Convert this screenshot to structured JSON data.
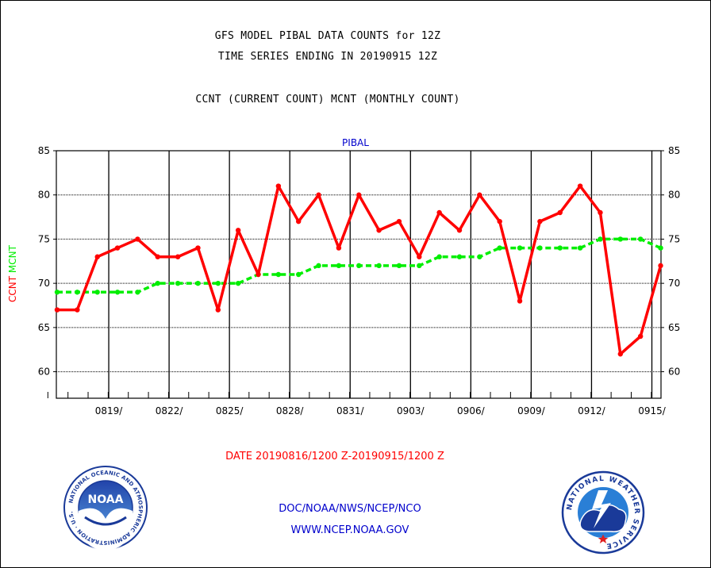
{
  "header": {
    "title": "GFS MODEL PIBAL DATA COUNTS for 12Z",
    "subtitle": "TIME SERIES ENDING IN 20190915 12Z",
    "legend_text": "CCNT (CURRENT COUNT) MCNT (MONTHLY COUNT)"
  },
  "footer": {
    "daterange": "DATE 20190816/1200 Z-20190915/1200 Z",
    "org": "DOC/NOAA/NWS/NCEP/NCO",
    "url": "WWW.NCEP.NOAA.GOV",
    "noaa_logo_text": "NOAA",
    "noaa_ring_text": "NATIONAL OCEANIC AND ATMOSPHERIC ADMINISTRATION · U.S. DEPARTMENT OF COMMERCE",
    "nws_ring_text": "NATIONAL WEATHER SERVICE"
  },
  "colors": {
    "ccnt": "#ff0000",
    "mcnt": "#00ee00",
    "axis": "#000000",
    "blue_text": "#0000cc",
    "red_text": "#ff0000"
  },
  "chart_data": {
    "type": "line",
    "title": "PIBAL",
    "ylabel_left": [
      "CCNT",
      "MCNT"
    ],
    "ylim": [
      57,
      85
    ],
    "yticks": [
      60,
      65,
      70,
      75,
      80,
      85
    ],
    "xlabels": [
      "0819/",
      "0822/",
      "0825/",
      "0828/",
      "0831/",
      "0903/",
      "0906/",
      "0909/",
      "0912/",
      "0915/"
    ],
    "grid": true,
    "x": [
      "0816",
      "0817",
      "0818",
      "0819",
      "0820",
      "0821",
      "0822",
      "0823",
      "0824",
      "0825",
      "0826",
      "0827",
      "0828",
      "0829",
      "0830",
      "0831",
      "0901",
      "0902",
      "0903",
      "0904",
      "0905",
      "0906",
      "0907",
      "0908",
      "0909",
      "0910",
      "0911",
      "0912",
      "0913",
      "0914",
      "0915"
    ],
    "series": [
      {
        "name": "CCNT",
        "values": [
          67,
          67,
          73,
          74,
          75,
          73,
          73,
          74,
          67,
          76,
          71,
          81,
          77,
          80,
          74,
          80,
          76,
          77,
          73,
          78,
          76,
          80,
          77,
          68,
          77,
          78,
          81,
          78,
          62,
          64,
          72
        ]
      },
      {
        "name": "MCNT",
        "values": [
          69,
          69,
          69,
          69,
          69,
          70,
          70,
          70,
          70,
          70,
          71,
          71,
          71,
          72,
          72,
          72,
          72,
          72,
          72,
          73,
          73,
          73,
          74,
          74,
          74,
          74,
          74,
          75,
          75,
          75,
          74
        ]
      }
    ]
  }
}
